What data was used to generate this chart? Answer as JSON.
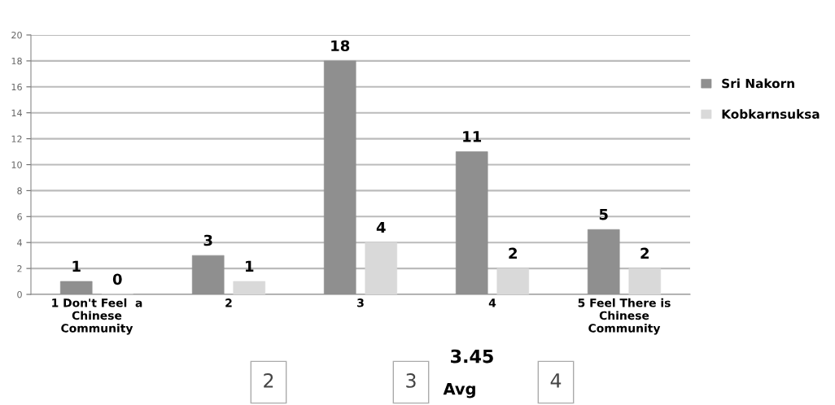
{
  "chart_data": {
    "type": "bar",
    "categories": [
      "1 Don't Feel  a\nChinese\nCommunity",
      "2",
      "3",
      "4",
      "5 Feel There is\nChinese\nCommunity"
    ],
    "series": [
      {
        "name": "Sri Nakorn",
        "color": "#8f8f8f",
        "values": [
          1,
          3,
          18,
          11,
          5
        ]
      },
      {
        "name": "Kobkarnsuksa",
        "color": "#d9d9d9",
        "values": [
          0,
          1,
          4,
          2,
          2
        ]
      }
    ],
    "ylim": [
      0,
      20
    ],
    "yticks": [
      0,
      2,
      4,
      6,
      8,
      10,
      12,
      14,
      16,
      18,
      20
    ],
    "grid": "y",
    "legend": "right",
    "data_labels": true,
    "annotations": [
      "2",
      "3",
      "3.45",
      "Avg",
      "4"
    ]
  }
}
